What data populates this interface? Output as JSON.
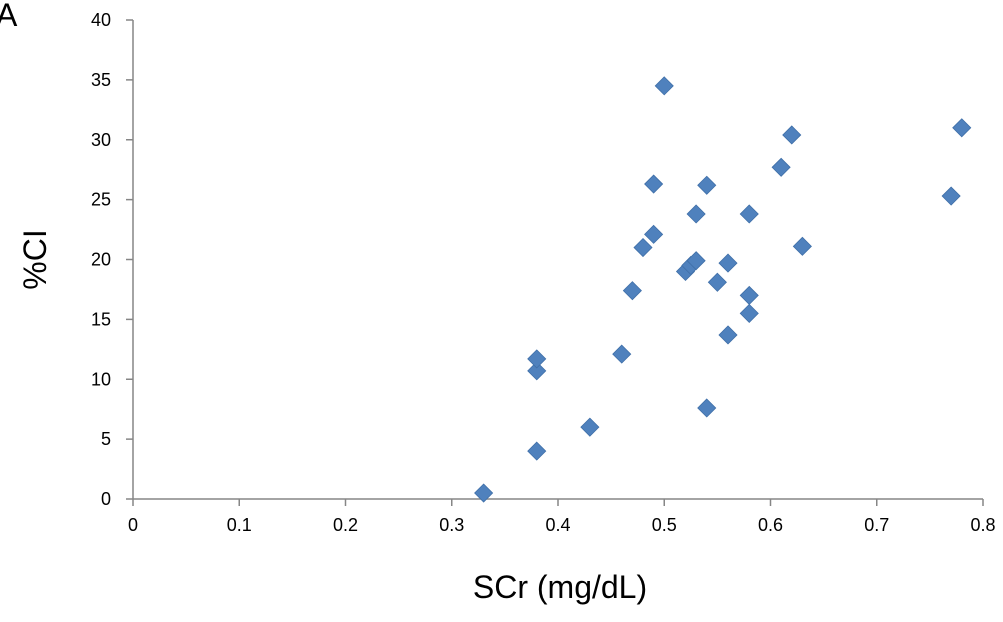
{
  "panel_label": "A",
  "chart_data": {
    "type": "scatter",
    "title": "",
    "xlabel": "SCr (mg/dL)",
    "ylabel": "%CI",
    "xlim": [
      0,
      0.8
    ],
    "ylim": [
      0,
      40
    ],
    "x_ticks": [
      0,
      0.1,
      0.2,
      0.3,
      0.4,
      0.5,
      0.6,
      0.7,
      0.8
    ],
    "x_tick_labels": [
      "0",
      "0.1",
      "0.2",
      "0.3",
      "0.4",
      "0.5",
      "0.6",
      "0.7",
      "0.8"
    ],
    "y_ticks": [
      0,
      5,
      10,
      15,
      20,
      25,
      30,
      35,
      40
    ],
    "y_tick_labels": [
      "0",
      "5",
      "10",
      "15",
      "20",
      "25",
      "30",
      "35",
      "40"
    ],
    "grid": false,
    "legend": "none",
    "marker": "diamond",
    "marker_color": "#4f81bd",
    "series": [
      {
        "points": [
          {
            "x": 0.33,
            "y": 0.5
          },
          {
            "x": 0.38,
            "y": 4.0
          },
          {
            "x": 0.38,
            "y": 10.7
          },
          {
            "x": 0.38,
            "y": 11.7
          },
          {
            "x": 0.43,
            "y": 6.0
          },
          {
            "x": 0.46,
            "y": 12.1
          },
          {
            "x": 0.47,
            "y": 17.4
          },
          {
            "x": 0.48,
            "y": 21.0
          },
          {
            "x": 0.49,
            "y": 22.1
          },
          {
            "x": 0.49,
            "y": 26.3
          },
          {
            "x": 0.5,
            "y": 34.5
          },
          {
            "x": 0.52,
            "y": 19.0
          },
          {
            "x": 0.525,
            "y": 19.5
          },
          {
            "x": 0.53,
            "y": 19.9
          },
          {
            "x": 0.53,
            "y": 23.8
          },
          {
            "x": 0.54,
            "y": 7.6
          },
          {
            "x": 0.54,
            "y": 26.2
          },
          {
            "x": 0.55,
            "y": 18.1
          },
          {
            "x": 0.56,
            "y": 13.7
          },
          {
            "x": 0.56,
            "y": 19.7
          },
          {
            "x": 0.58,
            "y": 15.5
          },
          {
            "x": 0.58,
            "y": 17.0
          },
          {
            "x": 0.58,
            "y": 23.8
          },
          {
            "x": 0.61,
            "y": 27.7
          },
          {
            "x": 0.62,
            "y": 30.4
          },
          {
            "x": 0.63,
            "y": 21.1
          },
          {
            "x": 0.77,
            "y": 25.3
          },
          {
            "x": 0.78,
            "y": 31.0
          }
        ]
      }
    ]
  }
}
